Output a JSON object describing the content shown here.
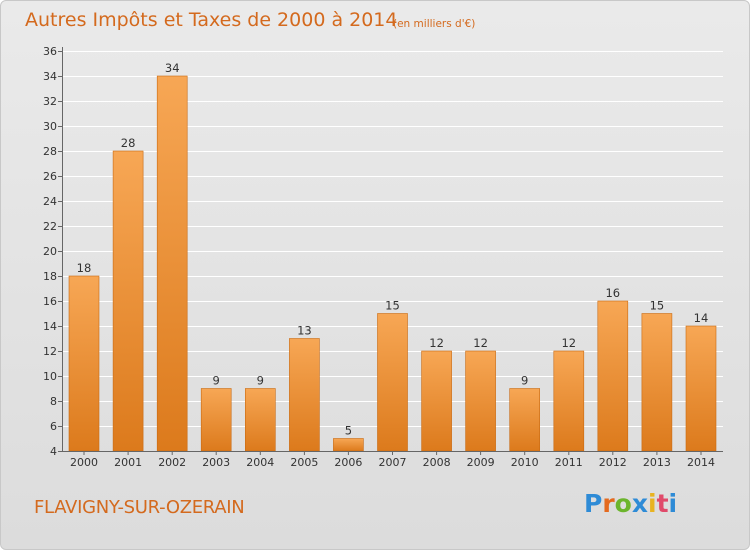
{
  "title": "Autres Impôts et Taxes de 2000 à 2014",
  "subtitle": "(en milliers d'€)",
  "commune": "FLAVIGNY-SUR-OZERAIN",
  "logo": {
    "letters": [
      "P",
      "r",
      "o",
      "x",
      "i",
      "t",
      "i"
    ],
    "colors": [
      "#2e8bd6",
      "#e46a1e",
      "#6cb52d",
      "#2e8bd6",
      "#e8b320",
      "#e04a6a",
      "#2e8bd6"
    ]
  },
  "colors": {
    "bar_light": "#f7a755",
    "bar_dark": "#dc7a1c",
    "bar_border": "#c96a12",
    "grid": "#ffffff",
    "axis": "#666666"
  },
  "chart_data": {
    "type": "bar",
    "categories": [
      "2000",
      "2001",
      "2002",
      "2003",
      "2004",
      "2005",
      "2006",
      "2007",
      "2008",
      "2009",
      "2010",
      "2011",
      "2012",
      "2013",
      "2014"
    ],
    "values": [
      18,
      28,
      34,
      9,
      9,
      13,
      5,
      15,
      12,
      12,
      9,
      12,
      16,
      15,
      14
    ],
    "title": "Autres Impôts et Taxes de 2000 à 2014",
    "subtitle": "(en milliers d'€)",
    "xlabel": "",
    "ylabel": "",
    "ylim": [
      4,
      36
    ],
    "yticks": [
      4,
      6,
      8,
      10,
      12,
      14,
      16,
      18,
      20,
      22,
      24,
      26,
      28,
      30,
      32,
      34,
      36
    ],
    "grid": true
  }
}
